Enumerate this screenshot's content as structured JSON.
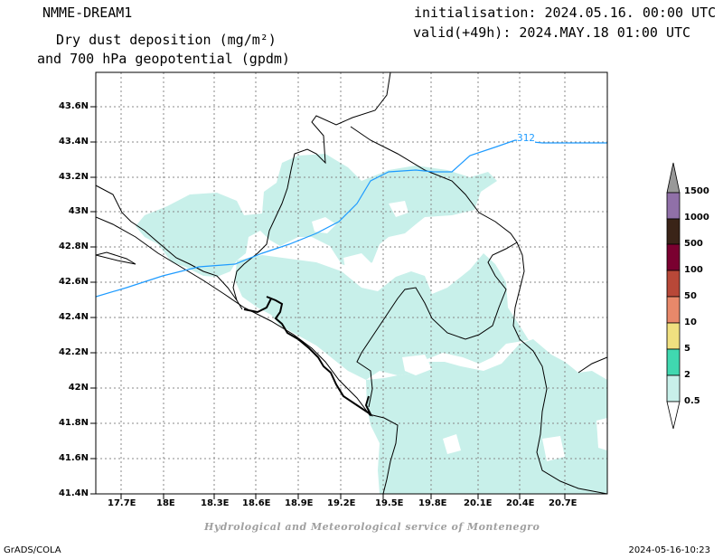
{
  "header": {
    "model": "NMME-DREAM1",
    "title_line1": "Dry dust deposition (mg/m²)",
    "title_line2": "and 700 hPa geopotential (gpdm)",
    "init": "initialisation: 2024.05.16. 00:00 UTC",
    "valid": "valid(+49h): 2024.MAY.18 01:00 UTC"
  },
  "map": {
    "lat_ticks": [
      "43.6N",
      "43.4N",
      "43.2N",
      "43N",
      "42.8N",
      "42.6N",
      "42.4N",
      "42.2N",
      "42N",
      "41.8N",
      "41.6N",
      "41.4N"
    ],
    "lon_ticks": [
      "17.7E",
      "18E",
      "18.3E",
      "18.6E",
      "18.9E",
      "19.2E",
      "19.5E",
      "19.8E",
      "20.1E",
      "20.4E",
      "20.7E"
    ],
    "contour_label": "312",
    "contour_color": "#1e9bff",
    "dust_color": "#c8f0ea"
  },
  "legend": {
    "levels": [
      "1500",
      "1000",
      "500",
      "100",
      "50",
      "10",
      "5",
      "2",
      "0.5"
    ],
    "colors": [
      "#9070a8",
      "#3a2418",
      "#7a0030",
      "#b84838",
      "#e8886a",
      "#f0e080",
      "#40d8b0",
      "#c8f0ea"
    ]
  },
  "footer": {
    "credit": "Hydrological and Meteorological service of Montenegro",
    "left": "GrADS/COLA",
    "right": "2024-05-16-10:23"
  }
}
